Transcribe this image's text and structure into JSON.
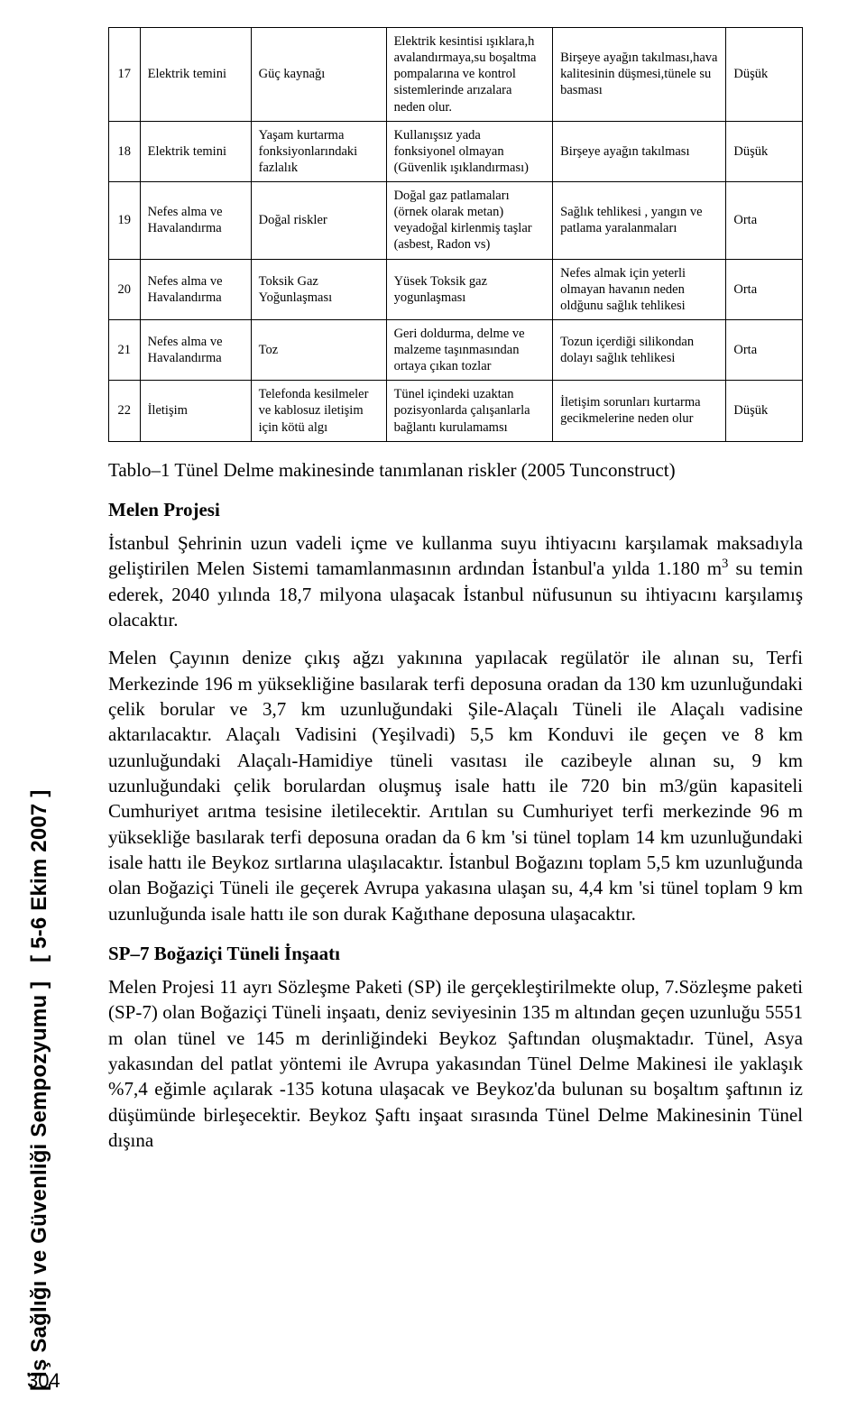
{
  "table": {
    "rows": [
      {
        "n": "17",
        "c1": "Elektrik temini",
        "c2": "Güç kaynağı",
        "c3": "Elektrik kesintisi ışıklara,h avalandırmaya,su boşaltma pompalarına ve kontrol sistemlerinde arızalara neden olur.",
        "c4": "Birşeye ayağın takılması,hava kalitesinin düşmesi,tünele su basması",
        "c5": "Düşük"
      },
      {
        "n": "18",
        "c1": "Elektrik temini",
        "c2": "Yaşam kurtarma fonksiyonlarındaki fazlalık",
        "c3": "Kullanışsız yada fonksiyonel olmayan (Güvenlik ışıklandırması)",
        "c4": "Birşeye ayağın takılması",
        "c5": "Düşük"
      },
      {
        "n": "19",
        "c1": "Nefes alma ve Havalandırma",
        "c2": "Doğal riskler",
        "c3": "Doğal gaz patlamaları (örnek olarak metan) veyadoğal kirlenmiş taşlar (asbest, Radon vs)",
        "c4": "Sağlık tehlikesi , yangın ve patlama yaralanmaları",
        "c5": "Orta"
      },
      {
        "n": "20",
        "c1": "Nefes alma ve Havalandırma",
        "c2": "Toksik Gaz Yoğunlaşması",
        "c3": "Yüsek Toksik gaz yogunlaşması",
        "c4": "Nefes almak için yeterli olmayan havanın neden oldğunu sağlık tehlikesi",
        "c5": "Orta"
      },
      {
        "n": "21",
        "c1": "Nefes alma ve Havalandırma",
        "c2": "Toz",
        "c3": "Geri doldurma, delme ve malzeme taşınmasından ortaya çıkan tozlar",
        "c4": "Tozun içerdiği silikondan dolayı sağlık tehlikesi",
        "c5": "Orta"
      },
      {
        "n": "22",
        "c1": "İletişim",
        "c2": "Telefonda kesilmeler ve kablosuz iletişim için kötü algı",
        "c3": "Tünel içindeki uzaktan pozisyonlarda çalışanlarla bağlantı kurulamamsı",
        "c4": "İletişim sorunları kurtarma gecikmelerine neden olur",
        "c5": "Düşük"
      }
    ]
  },
  "caption": "Tablo–1 Tünel Delme makinesinde tanımlanan riskler (2005 Tunconstruct)",
  "sections": {
    "melen_title": "Melen Projesi",
    "sp7_title": "SP–7 Boğaziçi Tüneli İnşaatı"
  },
  "paras": {
    "p1a": "İstanbul Şehrinin uzun vadeli içme ve kullanma suyu ihtiyacını karşılamak maksadıyla geliştirilen Melen Sistemi tamamlanmasının ardından İstanbul'a yılda 1.180 m",
    "p1b": " su temin ederek, 2040 yılında 18,7 milyona ulaşacak İstanbul nüfusunun su ihtiyacını karşılamış olacaktır.",
    "p1_sup": "3",
    "p2": "Melen Çayının denize çıkış ağzı yakınına yapılacak regülatör ile alınan su, Terfi Merkezinde 196 m yüksekliğine basılarak terfi deposuna oradan da 130 km uzunluğundaki çelik borular ve 3,7 km uzunluğundaki Şile-Alaçalı Tüneli ile Alaçalı vadisine aktarılacaktır. Alaçalı Vadisini (Yeşilvadi) 5,5 km Konduvi ile geçen ve 8 km uzunluğundaki Alaçalı-Hamidiye tüneli vasıtası ile cazibeyle alınan su, 9 km uzunluğundaki çelik borulardan oluşmuş isale hattı ile 720 bin m3/gün kapasiteli Cumhuriyet arıtma tesisine iletilecektir. Arıtılan su Cumhuriyet terfi merkezinde 96 m yüksekliğe basılarak terfi deposuna oradan da 6 km 'si tünel toplam 14 km uzunluğundaki isale hattı ile Beykoz sırtlarına ulaşılacaktır. İstanbul Boğazını toplam 5,5 km uzunluğunda olan Boğaziçi Tüneli ile geçerek Avrupa yakasına ulaşan su, 4,4 km 'si tünel toplam 9 km uzunluğunda isale hattı ile son durak Kağıthane deposuna ulaşacaktır.",
    "p3": "Melen Projesi 11 ayrı Sözleşme Paketi (SP) ile gerçekleştirilmekte olup, 7.Sözleşme paketi (SP-7) olan Boğaziçi Tüneli inşaatı, deniz seviyesinin 135 m altından geçen uzunluğu 5551 m olan tünel ve 145 m derinliğindeki Beykoz Şaftından oluşmaktadır. Tünel, Asya yakasından del patlat yöntemi ile Avrupa yakasından Tünel Delme Makinesi ile yaklaşık %7,4 eğimle açılarak -135 kotuna ulaşacak ve Beykoz'da bulunan su boşaltım şaftının iz düşümünde birleşecektir. Beykoz Şaftı inşaat sırasında Tünel Delme Makinesinin Tünel dışına"
  },
  "spine": {
    "bracket_open": "[",
    "label1": "İş Sağlığı ve Güvenliği Sempozyumu",
    "bracket_close": "]",
    "label2": "5-6 Ekim 2007"
  },
  "page_number": "304"
}
